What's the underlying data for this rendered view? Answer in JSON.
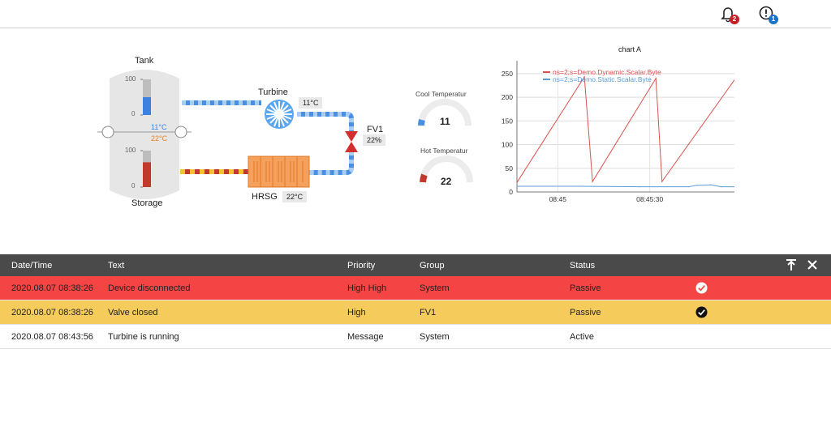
{
  "topbar": {
    "notifications_icon": "bell-icon",
    "notifications_count": "2",
    "alerts_icon": "exclamation-circle-icon",
    "alerts_count": "1",
    "notifications_badge_color": "#c81d25",
    "alerts_badge_color": "#1a73c8"
  },
  "process": {
    "tank_label": "Tank",
    "storage_label": "Storage",
    "turbine_label": "Turbine",
    "hrsg_label": "HRSG",
    "fv1_label": "FV1",
    "tank_cool_temp": "11°C",
    "tank_hot_temp": "22°C",
    "turbine_temp": "11°C",
    "hrsg_temp": "22°C",
    "fv1_value": "22%",
    "tank_level_top": 0.5,
    "tank_level_bottom": 0.68,
    "scale_top": {
      "max": "100",
      "min": "0"
    },
    "scale_bottom": {
      "max": "100",
      "min": "0"
    }
  },
  "gauges": [
    {
      "title": "Cool Temperatur",
      "value": "11",
      "color": "#4a90e2"
    },
    {
      "title": "Hot Temperatur",
      "value": "22",
      "color": "#c0392b"
    }
  ],
  "chart_data": {
    "type": "line",
    "title": "chart A",
    "series": [
      {
        "name": "ns=2;s=Demo.Dynamic.Scalar.Byte",
        "color": "#d9534f",
        "x": [
          0,
          33,
          37,
          68,
          71,
          108,
          112
        ],
        "values": [
          20,
          243,
          22,
          240,
          22,
          246,
          22
        ]
      },
      {
        "name": "ns=2;s=Demo.Static.Scalar.Byte",
        "color": "#5b9bd5",
        "x": [
          0,
          30,
          60,
          84,
          88,
          95,
          100,
          112
        ],
        "values": [
          12,
          12,
          11,
          11,
          14,
          15,
          11,
          11
        ]
      }
    ],
    "x_ticks": [
      "08:45",
      "08:45:30"
    ],
    "y_ticks": [
      "0",
      "50",
      "100",
      "150",
      "200",
      "250"
    ],
    "ylim": [
      0,
      260
    ],
    "grid": true,
    "legend": "top-left"
  },
  "alarms": {
    "headers": {
      "datetime": "Date/Time",
      "text": "Text",
      "priority": "Priority",
      "group": "Group",
      "status": "Status"
    },
    "rows": [
      {
        "datetime": "2020.08.07 08:38:26",
        "text": "Device disconnected",
        "priority": "High High",
        "group": "System",
        "status": "Passive",
        "color": "#f44444",
        "ack": true
      },
      {
        "datetime": "2020.08.07 08:38:26",
        "text": "Valve closed",
        "priority": "High",
        "group": "FV1",
        "status": "Passive",
        "color": "#f5cb5c",
        "ack": true
      },
      {
        "datetime": "2020.08.07 08:43:56",
        "text": "Turbine is running",
        "priority": "Message",
        "group": "System",
        "status": "Active",
        "color": "#ffffff",
        "ack": false
      }
    ]
  }
}
